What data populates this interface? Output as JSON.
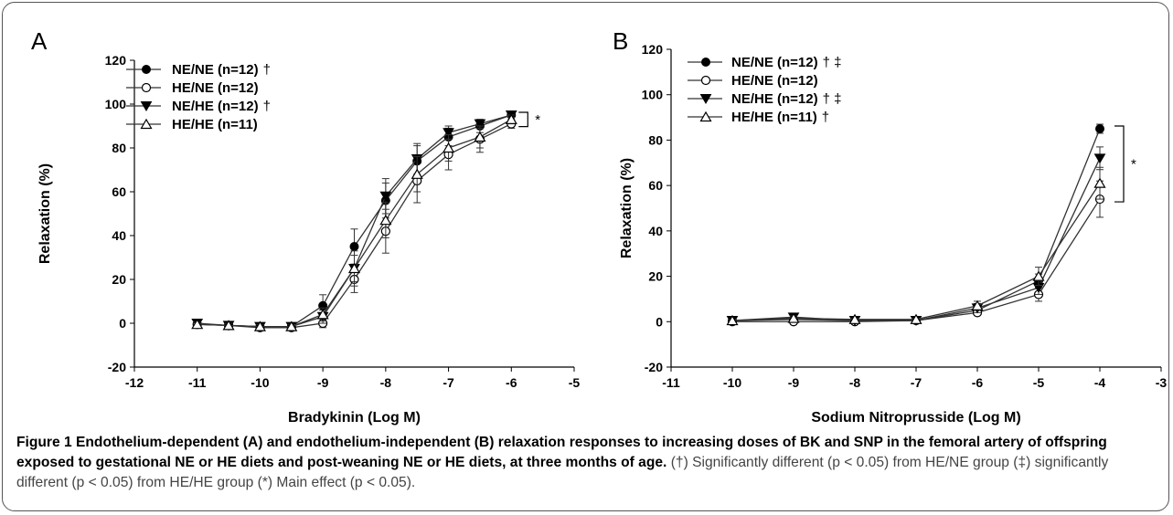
{
  "figure": {
    "caption_title": "Figure 1",
    "caption_bold": "Endothelium-dependent (A) and endothelium-independent (B) relaxation responses to increasing doses of BK and SNP in the femoral artery of offspring exposed to gestational NE or HE diets and post-weaning NE or HE diets, at three months of age.",
    "caption_rest": "(†) Significantly different (p < 0.05) from HE/NE group (‡) significantly different (p < 0.05) from HE/HE group (*) Main effect (p < 0.05)."
  },
  "colors": {
    "line": "#333333",
    "marker": "#000000",
    "frame": "#555555"
  },
  "chart_data": [
    {
      "panel": "A",
      "type": "line",
      "xlabel": "Bradykinin (Log M)",
      "ylabel": "Relaxation (%)",
      "xlim": [
        -12,
        -5
      ],
      "ylim": [
        -20,
        120
      ],
      "xticks": [
        -12,
        -11,
        -10,
        -9,
        -8,
        -7,
        -6,
        -5
      ],
      "yticks": [
        -20,
        0,
        20,
        40,
        60,
        80,
        100,
        120
      ],
      "x": [
        -11,
        -10.5,
        -10,
        -9.5,
        -9,
        -8.5,
        -8,
        -7.5,
        -7,
        -6.5,
        -6
      ],
      "series": [
        {
          "name": "NE/NE (n=12)",
          "mark": "†",
          "marker": "filled-circle",
          "values": [
            -0.5,
            -1,
            -1.5,
            -1.5,
            8,
            35,
            56,
            74,
            85,
            90,
            95
          ],
          "err": [
            1,
            1,
            1,
            1,
            5,
            8,
            8,
            7,
            4,
            3,
            1
          ]
        },
        {
          "name": "HE/NE (n=12)",
          "mark": "",
          "marker": "open-circle",
          "values": [
            -0.5,
            -1,
            -2,
            -2,
            0,
            20,
            42,
            65,
            77,
            84,
            91
          ],
          "err": [
            1,
            1,
            1,
            1,
            2,
            6,
            10,
            10,
            7,
            6,
            2
          ]
        },
        {
          "name": "NE/HE (n=12)",
          "mark": "†",
          "marker": "filled-triangle-down",
          "values": [
            0,
            -1,
            -1.5,
            -1.5,
            3,
            25,
            58,
            75,
            87,
            91,
            95
          ],
          "err": [
            1,
            1,
            1,
            1,
            3,
            8,
            8,
            7,
            3,
            2,
            1
          ]
        },
        {
          "name": "HE/HE (n=11)",
          "mark": "",
          "marker": "open-triangle-up",
          "values": [
            -0.5,
            -1,
            -1.5,
            -1.5,
            4,
            25,
            47,
            68,
            80,
            85,
            93
          ],
          "err": [
            1,
            1,
            1,
            1,
            3,
            6,
            8,
            8,
            6,
            5,
            2
          ]
        }
      ],
      "annotation": "*"
    },
    {
      "panel": "B",
      "type": "line",
      "xlabel": "Sodium Nitroprusside (Log M)",
      "ylabel": "Relaxation (%)",
      "xlim": [
        -11,
        -3
      ],
      "ylim": [
        -20,
        120
      ],
      "xticks": [
        -11,
        -10,
        -9,
        -8,
        -7,
        -6,
        -5,
        -4,
        -3
      ],
      "yticks": [
        -20,
        0,
        20,
        40,
        60,
        80,
        100,
        120
      ],
      "x": [
        -10,
        -9,
        -8,
        -7,
        -6,
        -5,
        -4
      ],
      "series": [
        {
          "name": "NE/NE (n=12)",
          "mark": "† ‡",
          "marker": "filled-circle",
          "values": [
            0.5,
            1,
            0.5,
            0.5,
            5,
            18,
            85
          ],
          "err": [
            0.5,
            1,
            0.5,
            0.5,
            1.5,
            3,
            2
          ]
        },
        {
          "name": "HE/NE (n=12)",
          "mark": "",
          "marker": "open-circle",
          "values": [
            0,
            0,
            0,
            0.5,
            4,
            12,
            54
          ],
          "err": [
            0.5,
            0.5,
            0.5,
            0.5,
            1,
            3,
            8
          ]
        },
        {
          "name": "NE/HE (n=12)",
          "mark": "† ‡",
          "marker": "filled-triangle-down",
          "values": [
            0.5,
            2,
            0.5,
            0.5,
            6,
            15,
            72
          ],
          "err": [
            0.5,
            1.5,
            0.5,
            0.5,
            2,
            3,
            5
          ]
        },
        {
          "name": "HE/HE (n=11)",
          "mark": "†",
          "marker": "open-triangle-up",
          "values": [
            0.5,
            1.5,
            1,
            1,
            7,
            20,
            61
          ],
          "err": [
            0.5,
            1,
            0.5,
            0.5,
            2,
            4,
            7
          ]
        }
      ],
      "annotation": "*"
    }
  ]
}
